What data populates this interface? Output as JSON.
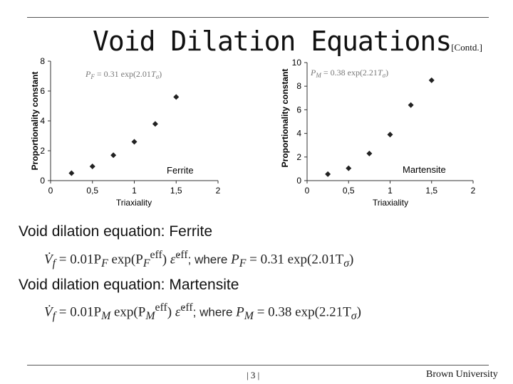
{
  "slide": {
    "title": "Void Dilation Equations",
    "title_suffix": "[Contd.]",
    "page_number": "| 3 |",
    "footer": "Brown University"
  },
  "sections": {
    "ferrite_heading": "Void dilation equation: Ferrite",
    "ferrite_equation": {
      "lhs": "V̇",
      "lhs_sub": "f",
      "rhs": " = 0.01P",
      "p_sub": "F",
      "exp": " exp(P",
      "exp_sub": "F",
      "eps": "ε̇",
      "eff": "eff",
      "where": "; where ",
      "def_p": "P",
      "def_p_sub": "F",
      "def_rhs": " = 0.31 exp(2.01T",
      "def_t_sub": "σ",
      "close": ")"
    },
    "martensite_heading": "Void dilation equation: Martensite",
    "martensite_equation": {
      "lhs": "V̇",
      "lhs_sub": "f",
      "rhs": " = 0.01P",
      "p_sub": "M",
      "exp": " exp(P",
      "exp_sub": "M",
      "eps": "ε̇",
      "eff": "eff",
      "where": "; where ",
      "def_p": "P",
      "def_p_sub": "M",
      "def_rhs": " = 0.38 exp(2.21T",
      "def_t_sub": "σ",
      "close": ")"
    }
  },
  "chart_data": [
    {
      "type": "scatter",
      "title": "",
      "xlabel": "Triaxiality",
      "ylabel": "Proportionality constant",
      "xlim": [
        0,
        2
      ],
      "ylim": [
        0,
        8
      ],
      "xticks": [
        0,
        0.5,
        1,
        1.5,
        2
      ],
      "xtick_labels": [
        "0",
        "0,5",
        "1",
        "1,5",
        "2"
      ],
      "yticks": [
        0,
        2,
        4,
        6,
        8
      ],
      "ytick_labels": [
        "0",
        "2",
        "4",
        "6",
        "8"
      ],
      "annotation": "P_F = 0.31 exp(2.01T_σ)",
      "grid": false,
      "marker_color": "#222222",
      "series": [
        {
          "name": "Ferrite",
          "x": [
            0.25,
            0.5,
            0.75,
            1.0,
            1.25,
            1.5
          ],
          "y": [
            0.5,
            0.95,
            1.7,
            2.6,
            3.8,
            5.6
          ]
        }
      ]
    },
    {
      "type": "scatter",
      "title": "",
      "xlabel": "Triaxiality",
      "ylabel": "Proportionality constant",
      "xlim": [
        0,
        2
      ],
      "ylim": [
        0,
        10
      ],
      "xticks": [
        0,
        0.5,
        1,
        1.5,
        2
      ],
      "xtick_labels": [
        "0",
        "0,5",
        "1",
        "1,5",
        "2"
      ],
      "yticks": [
        0,
        2,
        4,
        6,
        8,
        10
      ],
      "ytick_labels": [
        "0",
        "2",
        "4",
        "6",
        "8",
        "10"
      ],
      "annotation": "P_M = 0.38 exp(2.21T_σ)",
      "grid": false,
      "marker_color": "#222222",
      "series": [
        {
          "name": "Martensite",
          "x": [
            0.25,
            0.5,
            0.75,
            1.0,
            1.25,
            1.5
          ],
          "y": [
            0.55,
            1.05,
            2.3,
            3.9,
            6.4,
            8.5
          ]
        }
      ]
    }
  ]
}
